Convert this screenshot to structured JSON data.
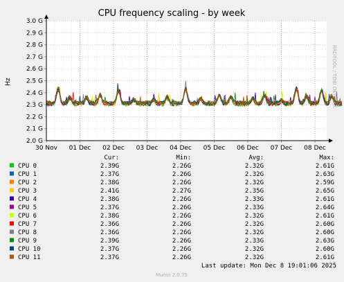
{
  "chart_data": {
    "type": "line",
    "title": "CPU frequency scaling - by week",
    "ylabel": "Hz",
    "y_ticks": [
      "2.0 G",
      "2.1 G",
      "2.2 G",
      "2.3 G",
      "2.4 G",
      "2.5 G",
      "2.6 G",
      "2.7 G",
      "2.8 G",
      "2.9 G",
      "3.0 G"
    ],
    "ylim": [
      2.0,
      3.0
    ],
    "x_ticks": [
      "30 Nov",
      "01 Dec",
      "02 Dec",
      "03 Dec",
      "04 Dec",
      "05 Dec",
      "06 Dec",
      "07 Dec",
      "08 Dec"
    ],
    "xlim_days": [
      0,
      8.8
    ],
    "grid": true,
    "side_label": "RRDTOOL / TOBI OETIKER",
    "columns": [
      "Cur:",
      "Min:",
      "Avg:",
      "Max:"
    ],
    "series": [
      {
        "name": "CPU 0",
        "color": "#00cc00",
        "cur": "2.39G",
        "min": "2.26G",
        "avg": "2.32G",
        "max": "2.61G"
      },
      {
        "name": "CPU 1",
        "color": "#0066b3",
        "cur": "2.37G",
        "min": "2.26G",
        "avg": "2.32G",
        "max": "2.63G"
      },
      {
        "name": "CPU 2",
        "color": "#ff8000",
        "cur": "2.38G",
        "min": "2.26G",
        "avg": "2.32G",
        "max": "2.59G"
      },
      {
        "name": "CPU 3",
        "color": "#ffcc00",
        "cur": "2.41G",
        "min": "2.27G",
        "avg": "2.35G",
        "max": "2.65G"
      },
      {
        "name": "CPU 4",
        "color": "#330099",
        "cur": "2.38G",
        "min": "2.26G",
        "avg": "2.33G",
        "max": "2.61G"
      },
      {
        "name": "CPU 5",
        "color": "#990099",
        "cur": "2.37G",
        "min": "2.26G",
        "avg": "2.33G",
        "max": "2.64G"
      },
      {
        "name": "CPU 6",
        "color": "#ccff00",
        "cur": "2.38G",
        "min": "2.26G",
        "avg": "2.32G",
        "max": "2.61G"
      },
      {
        "name": "CPU 7",
        "color": "#ff0000",
        "cur": "2.36G",
        "min": "2.26G",
        "avg": "2.32G",
        "max": "2.60G"
      },
      {
        "name": "CPU 8",
        "color": "#808080",
        "cur": "2.36G",
        "min": "2.26G",
        "avg": "2.32G",
        "max": "2.60G"
      },
      {
        "name": "CPU 9",
        "color": "#008f00",
        "cur": "2.39G",
        "min": "2.26G",
        "avg": "2.33G",
        "max": "2.63G"
      },
      {
        "name": "CPU 10",
        "color": "#00487d",
        "cur": "2.37G",
        "min": "2.26G",
        "avg": "2.32G",
        "max": "2.60G"
      },
      {
        "name": "CPU 11",
        "color": "#b35a00",
        "cur": "2.37G",
        "min": "2.26G",
        "avg": "2.32G",
        "max": "2.61G"
      }
    ],
    "trend": {
      "base": 2.31,
      "peaks": [
        {
          "day": 0.35,
          "value": 2.43
        },
        {
          "day": 0.7,
          "value": 2.36
        },
        {
          "day": 1.2,
          "value": 2.36
        },
        {
          "day": 1.6,
          "value": 2.38
        },
        {
          "day": 2.15,
          "value": 2.42
        },
        {
          "day": 2.6,
          "value": 2.34
        },
        {
          "day": 3.2,
          "value": 2.34
        },
        {
          "day": 3.6,
          "value": 2.36
        },
        {
          "day": 4.15,
          "value": 2.43
        },
        {
          "day": 4.6,
          "value": 2.35
        },
        {
          "day": 5.15,
          "value": 2.38
        },
        {
          "day": 5.5,
          "value": 2.36
        },
        {
          "day": 6.15,
          "value": 2.35
        },
        {
          "day": 6.5,
          "value": 2.38
        },
        {
          "day": 7.0,
          "value": 2.33
        },
        {
          "day": 7.45,
          "value": 2.43
        },
        {
          "day": 7.75,
          "value": 2.37
        },
        {
          "day": 8.2,
          "value": 2.42
        },
        {
          "day": 8.5,
          "value": 2.37
        }
      ]
    },
    "last_update": "Last update:  Mon Dec  8 19:01:06 2025",
    "footer": "Munin 2.0.75"
  }
}
